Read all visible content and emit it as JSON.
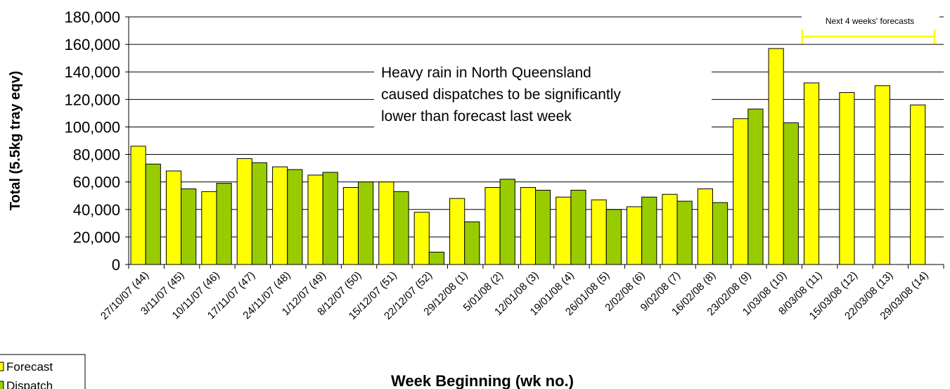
{
  "chart_data": {
    "type": "bar",
    "x_label": "Week Beginning (wk no.)",
    "y_label": "Total (5.5kg tray eqv)",
    "annotations": [
      "Heavy rain in North Queensland",
      "caused dispatches to be significantly",
      "lower than forecast last week",
      "Next 4 weeks' forecasts"
    ],
    "categories": [
      "27/10/07 (44)",
      "3/11/07 (45)",
      "10/11/07 (46)",
      "17/11/07 (47)",
      "24/11/07 (48)",
      "1/12/07 (49)",
      "8/12/07 (50)",
      "15/12/07 (51)",
      "22/12/07 (52)",
      "29/12/08 (1)",
      "5/01/08 (2)",
      "12/01/08 (3)",
      "19/01/08 (4)",
      "26/01/08 (5)",
      "2/02/08 (6)",
      "9/02/08 (7)",
      "16/02/08 (8)",
      "23/02/08 (9)",
      "1/03/08 (10)",
      "8/03/08 (11)",
      "15/03/08 (12)",
      "22/03/08 (13)",
      "29/03/08 (14)"
    ],
    "series": [
      {
        "name": "Forecast",
        "color": "#ffff00",
        "values": [
          86000,
          68000,
          53000,
          77000,
          71000,
          65000,
          56000,
          60000,
          38000,
          48000,
          56000,
          56000,
          49000,
          47000,
          42000,
          51000,
          55000,
          106000,
          157000,
          132000,
          125000,
          130000,
          116000
        ]
      },
      {
        "name": "Dispatch",
        "color": "#99cc00",
        "values": [
          73000,
          55000,
          59000,
          74000,
          69000,
          67000,
          60000,
          53000,
          9000,
          31000,
          62000,
          54000,
          54000,
          40000,
          49000,
          46000,
          45000,
          113000,
          103000,
          null,
          null,
          null,
          null
        ]
      }
    ],
    "ylim": [
      0,
      180000
    ],
    "yticks": [
      0,
      {
        "value": 20000,
        "label": "20,000"
      },
      {
        "value": 40000,
        "label": "40,000"
      },
      {
        "value": 60000,
        "label": "60,000"
      },
      {
        "value": 80000,
        "label": "80,000"
      },
      {
        "value": 100000,
        "label": "100,000"
      },
      {
        "value": 120000,
        "label": "120,000"
      },
      {
        "value": 140000,
        "label": "140,000"
      },
      {
        "value": 160000,
        "label": "160,000"
      },
      {
        "value": 180000,
        "label": "180,000"
      }
    ],
    "grid": true,
    "legend": "bottom-left"
  }
}
